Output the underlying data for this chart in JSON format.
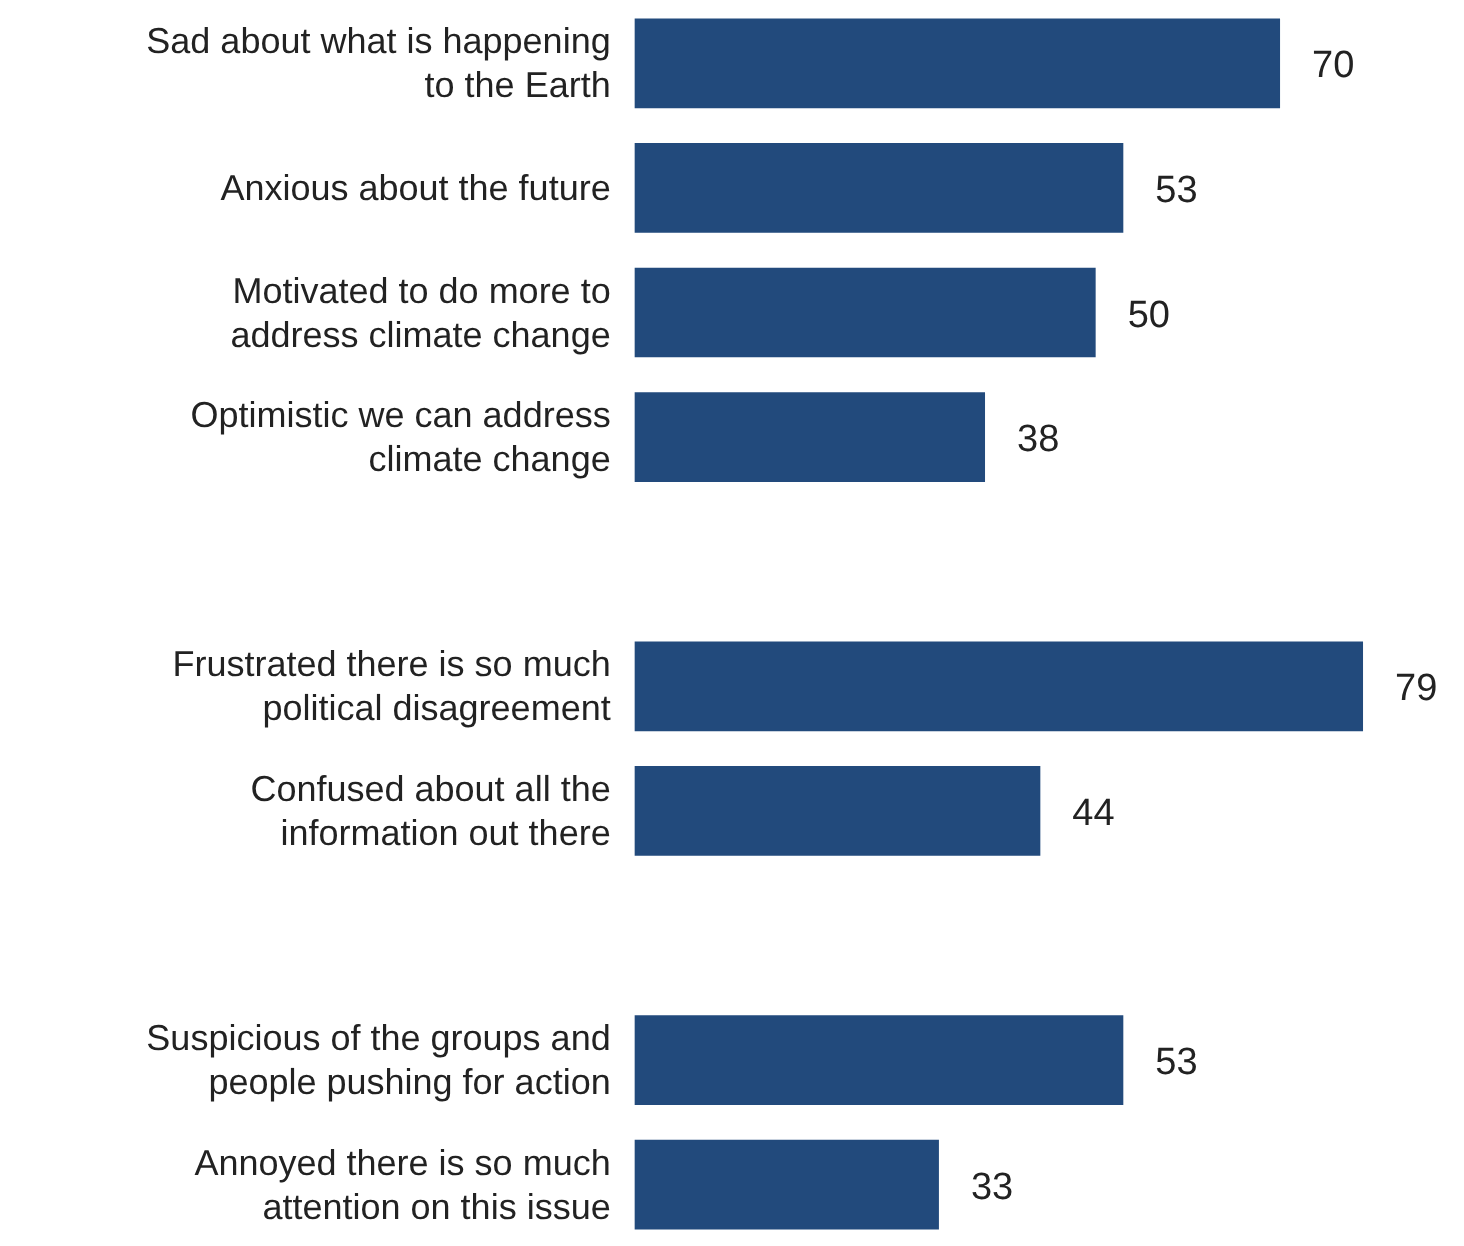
{
  "chart_data": {
    "type": "bar",
    "orientation": "horizontal",
    "categories": [
      "Sad about what is happening to the Earth",
      "Anxious about the future",
      "Motivated to do more to address climate change",
      "Optimistic we can address climate change",
      null,
      "Frustrated there is so much political disagreement",
      "Confused about all the information out there",
      null,
      "Suspicious of the groups and people pushing for action",
      "Annoyed there is so much attention on this issue"
    ],
    "values": [
      70,
      53,
      50,
      38,
      null,
      79,
      44,
      null,
      53,
      33
    ],
    "color": "#224a7c",
    "data_labels": true
  }
}
